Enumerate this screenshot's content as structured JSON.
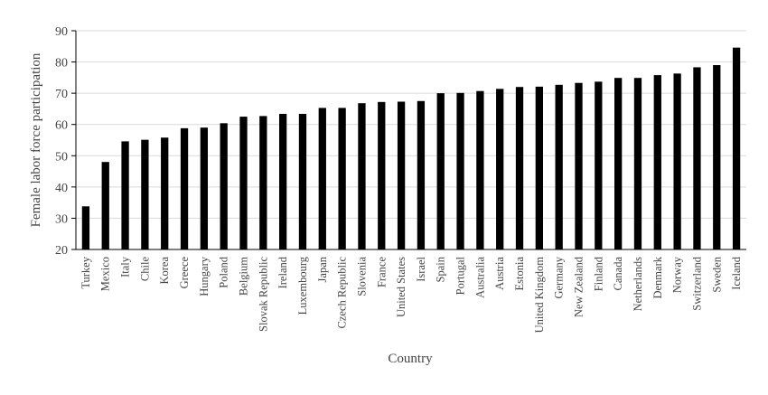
{
  "chart_data": {
    "type": "bar",
    "title": "",
    "xlabel": "Country",
    "ylabel": "Female labor force participation",
    "ylim": [
      20,
      90
    ],
    "yticks": [
      20,
      30,
      40,
      50,
      60,
      70,
      80,
      90
    ],
    "grid": "horizontal",
    "categories": [
      "Turkey",
      "Mexico",
      "Italy",
      "Chile",
      "Korea",
      "Greece",
      "Hungary",
      "Poland",
      "Belgium",
      "Slovak Republic",
      "Ireland",
      "Luxembourg",
      "Japan",
      "Czech Republic",
      "Slovenia",
      "France",
      "United States",
      "Israel",
      "Spain",
      "Portugal",
      "Australia",
      "Austria",
      "Estonia",
      "United Kingdom",
      "Germany",
      "New Zealand",
      "Finland",
      "Canada",
      "Netherlands",
      "Denmark",
      "Norway",
      "Switzerland",
      "Sweden",
      "Iceland"
    ],
    "values": [
      33.8,
      48.0,
      54.6,
      55.1,
      55.8,
      58.8,
      59.0,
      60.4,
      62.5,
      62.7,
      63.4,
      63.4,
      65.3,
      65.3,
      66.8,
      67.2,
      67.3,
      67.5,
      70.0,
      70.1,
      70.7,
      71.4,
      72.0,
      72.1,
      72.7,
      73.3,
      73.7,
      74.9,
      74.9,
      75.8,
      76.3,
      78.3,
      79.0,
      84.6
    ],
    "bar_color": "#000000",
    "grid_color": "#d9d9d9",
    "axis_color": "#000000"
  }
}
